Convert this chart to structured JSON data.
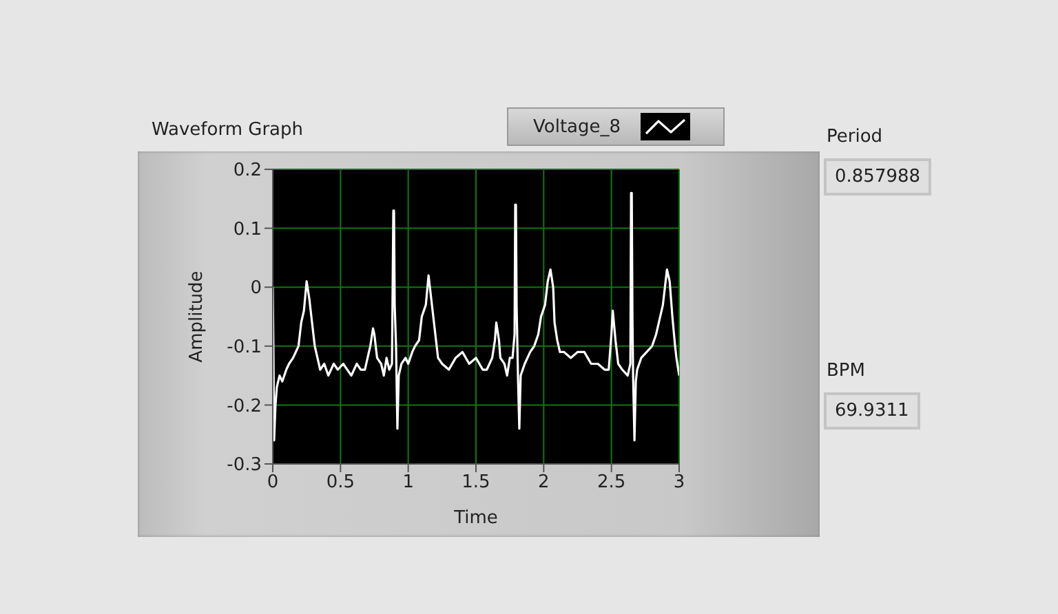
{
  "chart_data": {
    "type": "line",
    "title": "Waveform Graph",
    "xlabel": "Time",
    "ylabel": "Amplitude",
    "x": [
      0,
      0.005,
      0.01,
      0.02,
      0.03,
      0.05,
      0.07,
      0.1,
      0.12,
      0.15,
      0.17,
      0.19,
      0.21,
      0.23,
      0.25,
      0.27,
      0.29,
      0.31,
      0.33,
      0.35,
      0.38,
      0.41,
      0.45,
      0.48,
      0.52,
      0.55,
      0.58,
      0.62,
      0.65,
      0.68,
      0.7,
      0.72,
      0.74,
      0.75,
      0.77,
      0.8,
      0.82,
      0.84,
      0.86,
      0.88,
      0.89,
      0.895,
      0.9,
      0.91,
      0.92,
      0.93,
      0.95,
      0.98,
      1.0,
      1.03,
      1.05,
      1.08,
      1.1,
      1.13,
      1.15,
      1.17,
      1.19,
      1.21,
      1.22,
      1.25,
      1.3,
      1.35,
      1.4,
      1.45,
      1.5,
      1.55,
      1.58,
      1.62,
      1.64,
      1.65,
      1.67,
      1.68,
      1.71,
      1.73,
      1.75,
      1.77,
      1.785,
      1.79,
      1.795,
      1.8,
      1.81,
      1.82,
      1.83,
      1.86,
      1.9,
      1.93,
      1.96,
      1.98,
      2.01,
      2.03,
      2.05,
      2.07,
      2.08,
      2.1,
      2.12,
      2.15,
      2.2,
      2.25,
      2.3,
      2.35,
      2.4,
      2.45,
      2.48,
      2.5,
      2.51,
      2.53,
      2.55,
      2.58,
      2.62,
      2.64,
      2.645,
      2.65,
      2.655,
      2.66,
      2.67,
      2.68,
      2.69,
      2.72,
      2.76,
      2.8,
      2.83,
      2.86,
      2.88,
      2.91,
      2.93,
      2.95,
      2.97,
      2.98,
      3.0
    ],
    "series": [
      {
        "name": "Voltage_8",
        "color": "#ffffff",
        "values": [
          0,
          -0.12,
          -0.26,
          -0.2,
          -0.17,
          -0.15,
          -0.16,
          -0.14,
          -0.13,
          -0.12,
          -0.11,
          -0.1,
          -0.06,
          -0.04,
          0.01,
          -0.02,
          -0.06,
          -0.1,
          -0.12,
          -0.14,
          -0.13,
          -0.15,
          -0.13,
          -0.14,
          -0.13,
          -0.14,
          -0.15,
          -0.13,
          -0.14,
          -0.14,
          -0.12,
          -0.1,
          -0.07,
          -0.08,
          -0.12,
          -0.13,
          -0.15,
          -0.12,
          -0.14,
          -0.13,
          0.13,
          0.13,
          -0.03,
          -0.1,
          -0.24,
          -0.15,
          -0.13,
          -0.12,
          -0.13,
          -0.11,
          -0.1,
          -0.09,
          -0.05,
          -0.03,
          0.02,
          -0.02,
          -0.06,
          -0.1,
          -0.12,
          -0.13,
          -0.14,
          -0.12,
          -0.11,
          -0.13,
          -0.12,
          -0.14,
          -0.14,
          -0.12,
          -0.09,
          -0.06,
          -0.09,
          -0.12,
          -0.13,
          -0.15,
          -0.12,
          -0.12,
          -0.08,
          0.14,
          0.14,
          -0.03,
          -0.15,
          -0.24,
          -0.15,
          -0.13,
          -0.11,
          -0.1,
          -0.08,
          -0.05,
          -0.03,
          0.01,
          0.03,
          0,
          -0.06,
          -0.09,
          -0.11,
          -0.11,
          -0.12,
          -0.11,
          -0.11,
          -0.13,
          -0.13,
          -0.14,
          -0.14,
          -0.08,
          -0.04,
          -0.09,
          -0.13,
          -0.14,
          -0.15,
          -0.13,
          0.16,
          0.16,
          -0.05,
          -0.15,
          -0.26,
          -0.16,
          -0.14,
          -0.12,
          -0.11,
          -0.1,
          -0.08,
          -0.05,
          -0.03,
          0.03,
          0.01,
          -0.05,
          -0.1,
          -0.12,
          -0.15
        ]
      }
    ],
    "xlim": [
      0,
      3
    ],
    "xticks": [
      0,
      0.5,
      1,
      1.5,
      2,
      2.5,
      3
    ],
    "ylim": [
      -0.3,
      0.2
    ],
    "yticks": [
      -0.3,
      -0.2,
      -0.1,
      0,
      0.1,
      0.2
    ],
    "grid": true,
    "legend": "top",
    "marker": "none",
    "line_style": "solid",
    "annotations": [
      "Period",
      "0.857988",
      "BPM",
      "69.9311"
    ]
  }
}
